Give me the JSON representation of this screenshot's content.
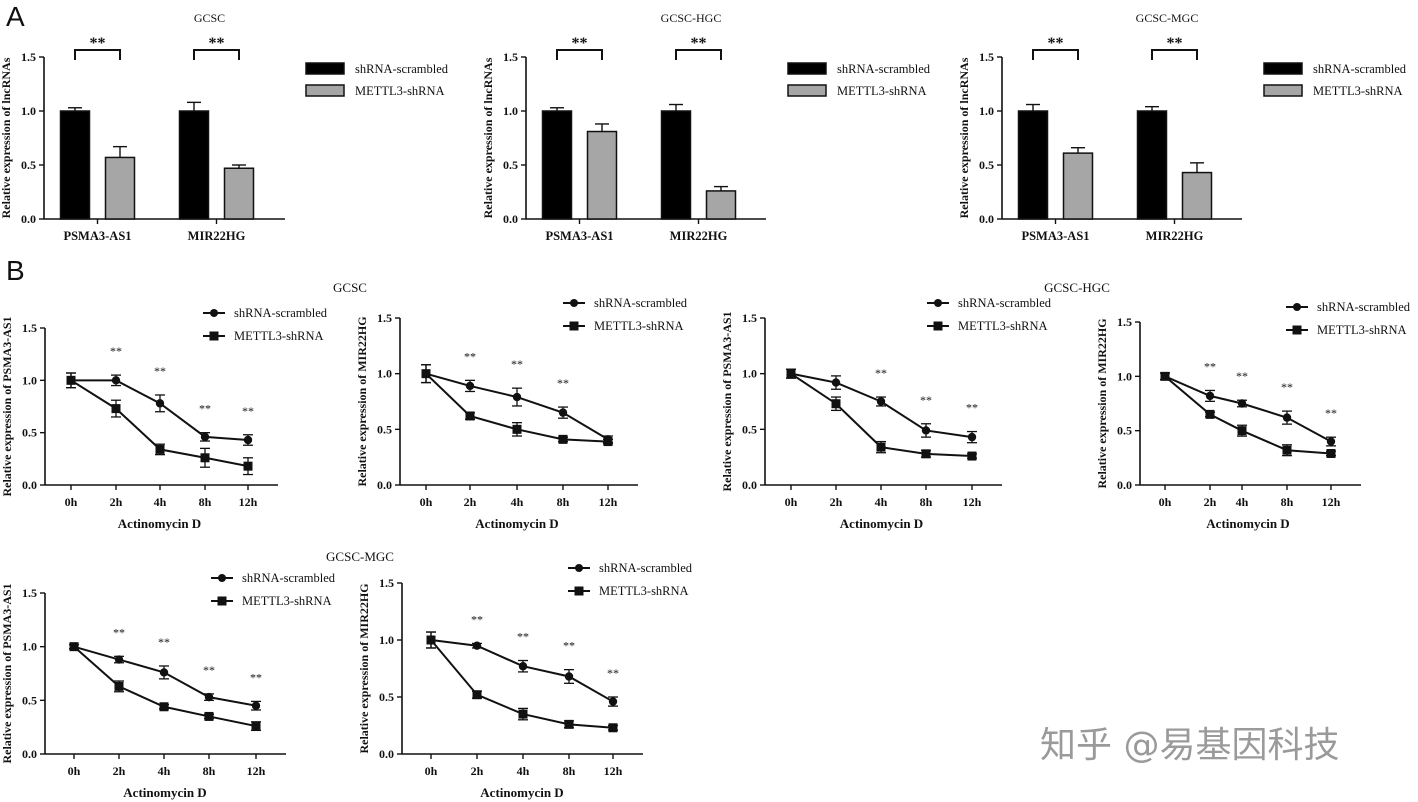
{
  "panel_labels": [
    "A",
    "B"
  ],
  "group_titles": [
    "GCSC",
    "GCSC-HGC",
    "GCSC-MGC"
  ],
  "watermark": "知乎 @易基因科技",
  "colors": {
    "scrambled": "#000000",
    "knockdown": "#a6a6a6",
    "axis": "#111111"
  },
  "chart_data": [
    {
      "type": "bar",
      "title": "GCSC",
      "ylabel": "Relative expression of lncRNAs",
      "ylim": [
        0,
        1.5
      ],
      "yticks": [
        "0.0",
        "0.5",
        "1.0",
        "1.5"
      ],
      "categories": [
        "PSMA3-AS1",
        "MIR22HG"
      ],
      "series": [
        {
          "name": "shRNA-scrambled",
          "values": [
            1.0,
            1.0
          ],
          "errors": [
            0.03,
            0.08
          ]
        },
        {
          "name": "METTL3-shRNA",
          "values": [
            0.57,
            0.47
          ],
          "errors": [
            0.1,
            0.03
          ]
        }
      ],
      "significance": [
        "**",
        "**"
      ],
      "legend": "right"
    },
    {
      "type": "bar",
      "title": "GCSC-HGC",
      "ylabel": "Relative expression of lncRNAs",
      "ylim": [
        0,
        1.5
      ],
      "yticks": [
        "0.0",
        "0.5",
        "1.0",
        "1.5"
      ],
      "categories": [
        "PSMA3-AS1",
        "MIR22HG"
      ],
      "series": [
        {
          "name": "shRNA-scrambled",
          "values": [
            1.0,
            1.0
          ],
          "errors": [
            0.03,
            0.06
          ]
        },
        {
          "name": "METTL3-shRNA",
          "values": [
            0.81,
            0.26
          ],
          "errors": [
            0.07,
            0.04
          ]
        }
      ],
      "significance": [
        "**",
        "**"
      ],
      "legend": "right"
    },
    {
      "type": "bar",
      "title": "GCSC-MGC",
      "ylabel": "Relative expression of lncRNAs",
      "ylim": [
        0,
        1.5
      ],
      "yticks": [
        "0.0",
        "0.5",
        "1.0",
        "1.5"
      ],
      "categories": [
        "PSMA3-AS1",
        "MIR22HG"
      ],
      "series": [
        {
          "name": "shRNA-scrambled",
          "values": [
            1.0,
            1.0
          ],
          "errors": [
            0.06,
            0.04
          ]
        },
        {
          "name": "METTL3-shRNA",
          "values": [
            0.61,
            0.43
          ],
          "errors": [
            0.05,
            0.09
          ]
        }
      ],
      "significance": [
        "**",
        "**"
      ],
      "legend": "right"
    },
    {
      "type": "line",
      "group": "GCSC",
      "xlabel": "Actinomycin D",
      "ylabel": "Relative expression of PSMA3-AS1",
      "ylim": [
        0,
        1.5
      ],
      "yticks": [
        "0.0",
        "0.5",
        "1.0",
        "1.5"
      ],
      "x": [
        "0h",
        "2h",
        "4h",
        "8h",
        "12h"
      ],
      "series": [
        {
          "name": "shRNA-scrambled",
          "values": [
            1.0,
            1.0,
            0.78,
            0.46,
            0.43
          ],
          "errors": [
            0.07,
            0.05,
            0.08,
            0.04,
            0.05
          ]
        },
        {
          "name": "METTL3-shRNA",
          "values": [
            1.0,
            0.73,
            0.34,
            0.26,
            0.18
          ],
          "errors": [
            0.07,
            0.08,
            0.05,
            0.09,
            0.08
          ]
        }
      ],
      "significance": [
        "",
        "**",
        "**",
        "**",
        "**"
      ],
      "legend": "top-right"
    },
    {
      "type": "line",
      "group": "GCSC",
      "xlabel": "Actinomycin D",
      "ylabel": "Relative expression of MIR22HG",
      "ylim": [
        0,
        1.5
      ],
      "yticks": [
        "0.0",
        "0.5",
        "1.0",
        "1.5"
      ],
      "x": [
        "0h",
        "2h",
        "4h",
        "8h",
        "12h"
      ],
      "series": [
        {
          "name": "shRNA-scrambled",
          "values": [
            1.0,
            0.89,
            0.79,
            0.65,
            0.41
          ],
          "errors": [
            0.08,
            0.05,
            0.08,
            0.05,
            0.03
          ]
        },
        {
          "name": "METTL3-shRNA",
          "values": [
            1.0,
            0.62,
            0.5,
            0.41,
            0.39
          ],
          "errors": [
            0.08,
            0.03,
            0.06,
            0.02,
            0.02
          ]
        }
      ],
      "significance": [
        "",
        "**",
        "**",
        "**",
        ""
      ],
      "legend": "top-right"
    },
    {
      "type": "line",
      "group": "GCSC-HGC",
      "xlabel": "Actinomycin D",
      "ylabel": "Relative expression of PSMA3-AS1",
      "ylim": [
        0,
        1.5
      ],
      "yticks": [
        "0.0",
        "0.5",
        "1.0",
        "1.5"
      ],
      "x": [
        "0h",
        "2h",
        "4h",
        "8h",
        "12h"
      ],
      "series": [
        {
          "name": "shRNA-scrambled",
          "values": [
            1.0,
            0.92,
            0.75,
            0.49,
            0.43
          ],
          "errors": [
            0.04,
            0.06,
            0.04,
            0.06,
            0.05
          ]
        },
        {
          "name": "METTL3-shRNA",
          "values": [
            1.0,
            0.73,
            0.34,
            0.28,
            0.26
          ],
          "errors": [
            0.04,
            0.06,
            0.05,
            0.03,
            0.02
          ]
        }
      ],
      "significance": [
        "",
        "",
        "**",
        "**",
        "**"
      ],
      "legend": "top-right"
    },
    {
      "type": "line",
      "group": "GCSC-HGC",
      "xlabel": "Actinomycin D",
      "ylabel": "Relative expression of MIR22HG",
      "ylim": [
        0,
        1.5
      ],
      "yticks": [
        "0.0",
        "0.5",
        "1.0",
        "1.5"
      ],
      "x": [
        "0h",
        "2h",
        "4h",
        "8h",
        "12h"
      ],
      "series": [
        {
          "name": "shRNA-scrambled",
          "values": [
            1.0,
            0.82,
            0.75,
            0.62,
            0.4
          ],
          "errors": [
            0.03,
            0.05,
            0.03,
            0.06,
            0.04
          ]
        },
        {
          "name": "METTL3-shRNA",
          "values": [
            1.0,
            0.65,
            0.5,
            0.32,
            0.29
          ],
          "errors": [
            0.03,
            0.02,
            0.05,
            0.05,
            0.02
          ]
        }
      ],
      "significance": [
        "",
        "**",
        "**",
        "**",
        "**"
      ],
      "legend": "top-right"
    },
    {
      "type": "line",
      "group": "GCSC-MGC",
      "xlabel": "Actinomycin D",
      "ylabel": "Relative expression of PSMA3-AS1",
      "ylim": [
        0,
        1.5
      ],
      "yticks": [
        "0.0",
        "0.5",
        "1.0",
        "1.5"
      ],
      "x": [
        "0h",
        "2h",
        "4h",
        "8h",
        "12h"
      ],
      "series": [
        {
          "name": "shRNA-scrambled",
          "values": [
            1.0,
            0.88,
            0.76,
            0.53,
            0.45
          ],
          "errors": [
            0.02,
            0.03,
            0.06,
            0.03,
            0.04
          ]
        },
        {
          "name": "METTL3-shRNA",
          "values": [
            1.0,
            0.63,
            0.44,
            0.35,
            0.26
          ],
          "errors": [
            0.02,
            0.05,
            0.02,
            0.02,
            0.04
          ]
        }
      ],
      "significance": [
        "",
        "**",
        "**",
        "**",
        "**"
      ],
      "legend": "top-right"
    },
    {
      "type": "line",
      "group": "GCSC-MGC",
      "xlabel": "Actinomycin D",
      "ylabel": "Relative expression of MIR22HG",
      "ylim": [
        0,
        1.5
      ],
      "yticks": [
        "0.0",
        "0.5",
        "1.0",
        "1.5"
      ],
      "x": [
        "0h",
        "2h",
        "4h",
        "8h",
        "12h"
      ],
      "series": [
        {
          "name": "shRNA-scrambled",
          "values": [
            1.0,
            0.95,
            0.77,
            0.68,
            0.46
          ],
          "errors": [
            0.07,
            0.02,
            0.05,
            0.06,
            0.04
          ]
        },
        {
          "name": "METTL3-shRNA",
          "values": [
            1.0,
            0.52,
            0.35,
            0.26,
            0.23
          ],
          "errors": [
            0.07,
            0.03,
            0.05,
            0.03,
            0.02
          ]
        }
      ],
      "significance": [
        "",
        "**",
        "**",
        "**",
        "**"
      ],
      "legend": "top-right"
    }
  ]
}
